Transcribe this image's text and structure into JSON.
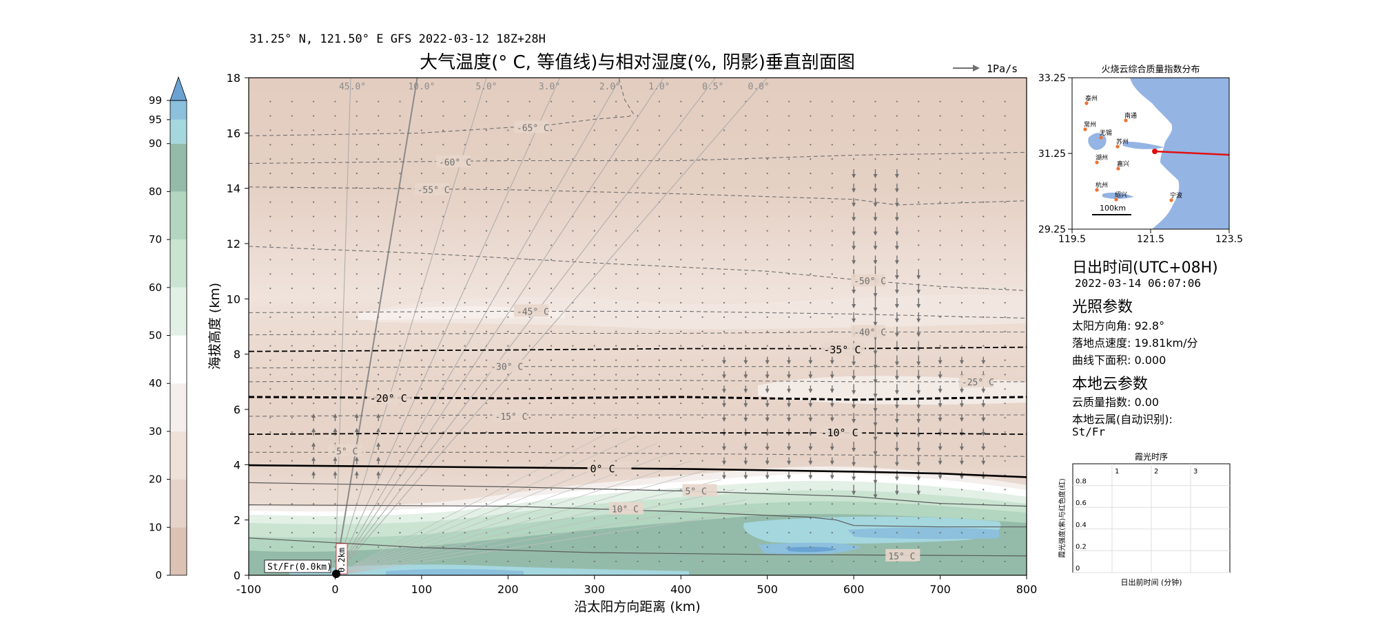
{
  "header": {
    "location_line": "31.25° N, 121.50° E GFS 2022-03-12 18Z+28H",
    "title": "大气温度(° C, 等值线)与相对湿度(%, 阴影)垂直剖面图",
    "wind_legend": "1Pa/s"
  },
  "colorbar": {
    "ticks": [
      "0",
      "10",
      "20",
      "30",
      "40",
      "50",
      "60",
      "70",
      "80",
      "90",
      "95",
      "99"
    ],
    "colors": [
      "#dcc2b4",
      "#e6d3c9",
      "#eee1da",
      "#f4efec",
      "#ffffff",
      "#e2f0e6",
      "#cae4d1",
      "#b2d6bf",
      "#94bba9",
      "#a5d7df",
      "#8cc0dc",
      "#6aa3d2"
    ]
  },
  "chart_data": {
    "type": "heatmap",
    "title": "大气温度(° C, 等值线)与相对湿度(%, 阴影)垂直剖面图",
    "xlabel": "沿太阳方向距离 (km)",
    "ylabel": "海拔高度 (km)",
    "xlim": [
      -100,
      800
    ],
    "ylim": [
      0,
      18
    ],
    "x_ticks": [
      "-100",
      "0",
      "100",
      "200",
      "300",
      "400",
      "500",
      "600",
      "700",
      "800"
    ],
    "y_ticks": [
      "0",
      "2",
      "4",
      "6",
      "8",
      "10",
      "12",
      "14",
      "16",
      "18"
    ],
    "temperature_contours": [
      {
        "label": "15° C",
        "label_at": [
          640,
          0.7
        ],
        "points": [
          [
            -100,
            1.35
          ],
          [
            100,
            1.0
          ],
          [
            300,
            0.82
          ],
          [
            500,
            0.75
          ],
          [
            700,
            0.72
          ],
          [
            800,
            0.7
          ]
        ]
      },
      {
        "label": "10° C",
        "label_at": [
          320,
          2.4
        ],
        "points": [
          [
            -100,
            2.55
          ],
          [
            200,
            2.5
          ],
          [
            400,
            2.3
          ],
          [
            550,
            2.1
          ],
          [
            580,
            2.0
          ],
          [
            600,
            1.8
          ],
          [
            700,
            1.75
          ],
          [
            800,
            1.75
          ]
        ]
      },
      {
        "label": "5° C",
        "label_at": [
          405,
          3.05
        ],
        "points": [
          [
            -100,
            3.35
          ],
          [
            200,
            3.2
          ],
          [
            400,
            3.05
          ],
          [
            600,
            2.85
          ],
          [
            700,
            2.6
          ],
          [
            800,
            2.5
          ]
        ]
      },
      {
        "label": "0° C",
        "label_at": [
          295,
          3.85
        ],
        "points": [
          [
            -100,
            3.98
          ],
          [
            200,
            3.9
          ],
          [
            400,
            3.85
          ],
          [
            600,
            3.75
          ],
          [
            700,
            3.68
          ],
          [
            800,
            3.55
          ]
        ]
      },
      {
        "label": "-5° C",
        "label_at": [
          -5,
          4.5
        ],
        "points": [
          [
            -100,
            4.45
          ],
          [
            200,
            4.45
          ],
          [
            400,
            4.4
          ],
          [
            600,
            4.35
          ],
          [
            800,
            4.3
          ]
        ]
      },
      {
        "label": "-10° C",
        "label_at": [
          562,
          5.15
        ],
        "points": [
          [
            -100,
            5.1
          ],
          [
            200,
            5.15
          ],
          [
            400,
            5.15
          ],
          [
            600,
            5.15
          ],
          [
            800,
            5.1
          ]
        ]
      },
      {
        "label": "-15° C",
        "label_at": [
          185,
          5.75
        ],
        "points": [
          [
            -100,
            5.75
          ],
          [
            200,
            5.8
          ],
          [
            400,
            5.8
          ],
          [
            600,
            5.8
          ],
          [
            800,
            5.8
          ]
        ]
      },
      {
        "label": "-20° C",
        "label_at": [
          40,
          6.4
        ],
        "points": [
          [
            -100,
            6.45
          ],
          [
            200,
            6.4
          ],
          [
            400,
            6.45
          ],
          [
            600,
            6.35
          ],
          [
            800,
            6.45
          ]
        ]
      },
      {
        "label": "-25° C",
        "label_at": [
          725,
          7.0
        ],
        "points": [
          [
            -100,
            7.0
          ],
          [
            200,
            7.05
          ],
          [
            400,
            7.05
          ],
          [
            600,
            7.0
          ],
          [
            800,
            7.0
          ]
        ]
      },
      {
        "label": "-30° C",
        "label_at": [
          180,
          7.55
        ],
        "points": [
          [
            -100,
            7.5
          ],
          [
            200,
            7.55
          ],
          [
            400,
            7.55
          ],
          [
            600,
            7.55
          ],
          [
            800,
            7.55
          ]
        ]
      },
      {
        "label": "-35° C",
        "label_at": [
          565,
          8.15
        ],
        "points": [
          [
            -100,
            8.1
          ],
          [
            200,
            8.15
          ],
          [
            400,
            8.2
          ],
          [
            600,
            8.2
          ],
          [
            800,
            8.25
          ]
        ]
      },
      {
        "label": "-40° C",
        "label_at": [
          600,
          8.8
        ],
        "points": [
          [
            -100,
            8.7
          ],
          [
            200,
            8.75
          ],
          [
            400,
            8.75
          ],
          [
            600,
            8.8
          ],
          [
            800,
            8.8
          ]
        ]
      },
      {
        "label": "-45° C",
        "label_at": [
          210,
          9.55
        ],
        "points": [
          [
            -100,
            9.5
          ],
          [
            200,
            9.55
          ],
          [
            400,
            9.55
          ],
          [
            600,
            9.45
          ],
          [
            800,
            9.3
          ]
        ]
      },
      {
        "label": "-50° C",
        "label_at": [
          600,
          10.65
        ],
        "points": [
          [
            -100,
            11.9
          ],
          [
            100,
            11.65
          ],
          [
            300,
            11.3
          ],
          [
            500,
            11.0
          ],
          [
            600,
            10.7
          ],
          [
            700,
            10.45
          ],
          [
            800,
            10.3
          ]
        ]
      },
      {
        "label": "-55° C",
        "label_at": [
          95,
          13.95
        ],
        "points": [
          [
            -100,
            14.05
          ],
          [
            200,
            13.95
          ],
          [
            400,
            13.8
          ],
          [
            600,
            13.6
          ],
          [
            650,
            13.4
          ],
          [
            800,
            13.55
          ]
        ]
      },
      {
        "label": "-60° C",
        "label_at": [
          120,
          14.95
        ],
        "points": [
          [
            -100,
            14.9
          ],
          [
            200,
            15.0
          ],
          [
            400,
            15.0
          ],
          [
            600,
            15.2
          ],
          [
            800,
            15.3
          ]
        ]
      },
      {
        "label": "-65° C",
        "label_at": [
          210,
          16.2
        ],
        "points": [
          [
            -100,
            15.9
          ],
          [
            100,
            16.0
          ],
          [
            250,
            16.3
          ],
          [
            300,
            16.5
          ],
          [
            340,
            16.6
          ],
          [
            345,
            16.7
          ],
          [
            335,
            17.2
          ],
          [
            328,
            18
          ]
        ]
      }
    ],
    "solar_elevation_rays": [
      {
        "label": "45.0°",
        "label_x": 20,
        "top_x": 18
      },
      {
        "label": "10.0°",
        "label_x": 100,
        "top_x": 95
      },
      {
        "label": "5.0°",
        "label_x": 175,
        "top_x": 175
      },
      {
        "label": "3.0°",
        "label_x": 248,
        "top_x": 260
      },
      {
        "label": "2.0°",
        "label_x": 318,
        "top_x": 330
      },
      {
        "label": "1.0°",
        "label_x": 375,
        "top_x": 380
      },
      {
        "label": "0.5°",
        "label_x": 437,
        "top_x": 440
      },
      {
        "label": "0.0°",
        "label_x": 490,
        "top_x": 500
      }
    ],
    "annotations": {
      "cloud_label": "St/Fr(0.0km)",
      "height_label": "0.2km"
    }
  },
  "map_inset": {
    "title": "火烧云综合质量指数分布",
    "y_ticks": [
      "33.25",
      "31.25",
      "29.25"
    ],
    "x_ticks": [
      "119.5",
      "121.5",
      "123.5"
    ],
    "scale_label": "100km",
    "cities": [
      "泰州",
      "南通",
      "常州",
      "无锡",
      "苏州",
      "湖州",
      "嘉兴",
      "杭州",
      "绍兴",
      "宁波"
    ],
    "colors": {
      "sea": "#94b4e4",
      "land": "#ffffff",
      "lake": "#94b4e4",
      "ray": "#e01010",
      "city": "#f07030"
    }
  },
  "info_panel": {
    "sunrise_title": "日出时间(UTC+08H)",
    "sunrise_time": "2022-03-14 06:07:06",
    "light_title": "光照参数",
    "azimuth": "太阳方向角: 92.8°",
    "ground_speed": "落地点速度: 19.81km/分",
    "area": "曲线下面积: 0.000",
    "cloud_title": "本地云参数",
    "cloud_quality": "云质量指数: 0.00",
    "cloud_type_label": "本地云属(自动识别):",
    "cloud_type_value": "St/Fr"
  },
  "glow_chart": {
    "title": "霞光时序",
    "xlabel": "日出前时间 (分钟)",
    "ylabel": "霞光强度(紫)与红色度(红)",
    "x_ticks": [
      "1",
      "2",
      "3"
    ],
    "y_ticks": [
      "0",
      "0.2",
      "0.4",
      "0.6",
      "0.8"
    ]
  }
}
